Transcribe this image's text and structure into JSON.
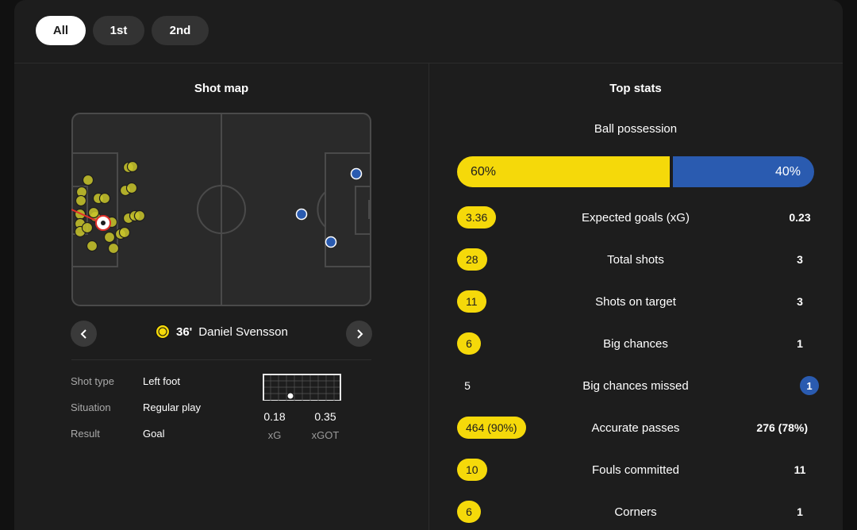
{
  "tabs": [
    {
      "label": "All",
      "active": true
    },
    {
      "label": "1st",
      "active": false
    },
    {
      "label": "2nd",
      "active": false
    }
  ],
  "shot_map": {
    "title": "Shot map",
    "home_color": "#c9c62a",
    "away_color": "#2a5bb0",
    "selected_shot": {
      "minute": "36'",
      "player": "Daniel Svensson",
      "details": [
        {
          "label": "Shot type",
          "value": "Left foot"
        },
        {
          "label": "Situation",
          "value": "Regular play"
        },
        {
          "label": "Result",
          "value": "Goal"
        }
      ],
      "xg_value": "0.18",
      "xg_label": "xG",
      "xgot_value": "0.35",
      "xgot_label": "xGOT"
    }
  },
  "top_stats": {
    "title": "Top stats",
    "possession": {
      "label": "Ball possession",
      "home": "60%",
      "away": "40%",
      "home_share": 60,
      "away_share": 40
    },
    "home_color": "#f5d90a",
    "away_color": "#2a5bb0",
    "rows": [
      {
        "label": "Expected goals (xG)",
        "home": "3.36",
        "away": "0.23",
        "highlight": "home"
      },
      {
        "label": "Total shots",
        "home": "28",
        "away": "3",
        "highlight": "home"
      },
      {
        "label": "Shots on target",
        "home": "11",
        "away": "3",
        "highlight": "home"
      },
      {
        "label": "Big chances",
        "home": "6",
        "away": "1",
        "highlight": "home"
      },
      {
        "label": "Big chances missed",
        "home": "5",
        "away": "1",
        "highlight": "away"
      },
      {
        "label": "Accurate passes",
        "home": "464 (90%)",
        "away": "276 (78%)",
        "highlight": "home"
      },
      {
        "label": "Fouls committed",
        "home": "10",
        "away": "11",
        "highlight": "home"
      },
      {
        "label": "Corners",
        "home": "6",
        "away": "1",
        "highlight": "home"
      }
    ]
  }
}
